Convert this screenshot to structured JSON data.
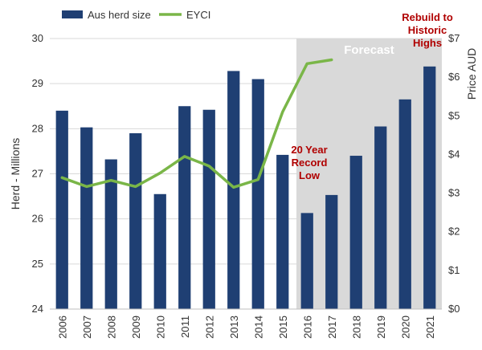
{
  "chart_data": {
    "type": "bar",
    "title": "",
    "categories": [
      "2006",
      "2007",
      "2008",
      "2009",
      "2010",
      "2011",
      "2012",
      "2013",
      "2014",
      "2015",
      "2016",
      "2017",
      "2018",
      "2019",
      "2020",
      "2021"
    ],
    "series": [
      {
        "name": "Aus herd size",
        "type": "bar",
        "axis": "left",
        "color": "#1f3f73",
        "values": [
          28.4,
          28.03,
          27.32,
          27.9,
          26.55,
          28.5,
          28.42,
          29.28,
          29.1,
          27.42,
          26.13,
          26.53,
          27.4,
          28.05,
          28.65,
          29.38
        ]
      },
      {
        "name": "EYCI",
        "type": "line",
        "axis": "right",
        "color": "#7ab648",
        "values": [
          3.4,
          3.17,
          3.33,
          3.17,
          3.52,
          3.95,
          3.7,
          3.15,
          3.35,
          5.1,
          6.35,
          6.45,
          null,
          null,
          null,
          null
        ]
      }
    ],
    "ylabel": "Herd - Millions",
    "ylim": [
      24,
      30
    ],
    "yticks": [
      "24",
      "25",
      "26",
      "27",
      "28",
      "29",
      "30"
    ],
    "y2label": "Price AUD",
    "y2lim": [
      0,
      7
    ],
    "y2ticks": [
      "$0",
      "$1",
      "$2",
      "$3",
      "$4",
      "$5",
      "$6",
      "$7"
    ],
    "legend": {
      "position": "top-left",
      "entries": [
        "Aus herd size",
        "EYCI"
      ]
    },
    "forecast": {
      "label": "Forecast",
      "from": "2016",
      "to": "2021",
      "shade": "#d9d9d9"
    },
    "annotations": [
      {
        "lines": [
          "20 Year",
          "Record",
          "Low"
        ],
        "near": "2016"
      },
      {
        "lines": [
          "Rebuild to",
          "Historic",
          "Highs"
        ],
        "near": "2021"
      }
    ],
    "grid": true
  }
}
